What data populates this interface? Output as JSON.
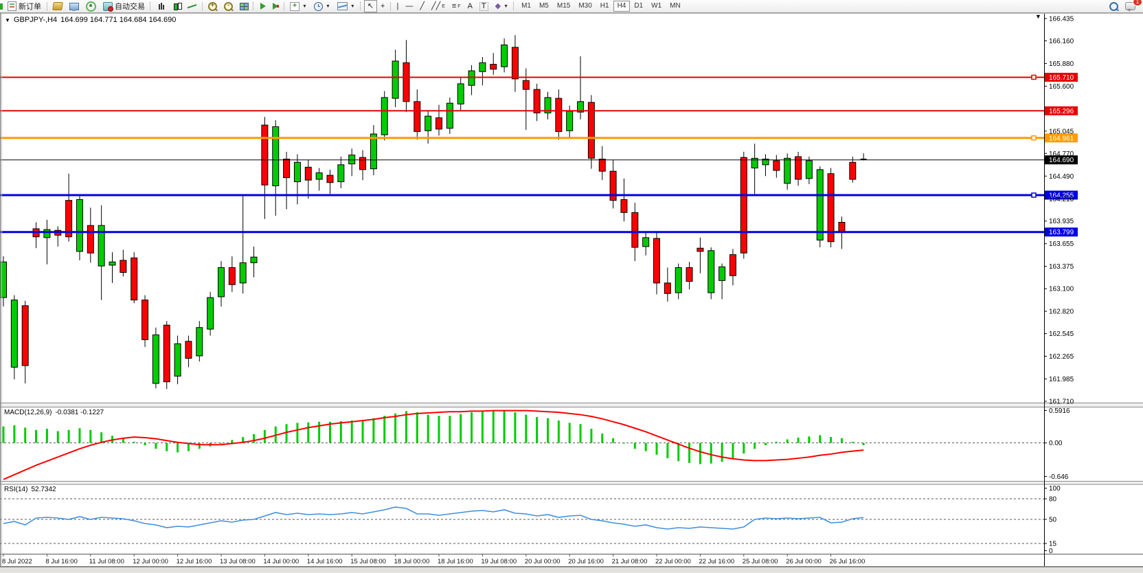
{
  "toolbar": {
    "new_order_label": "新订单",
    "autotrading_label": "自动交易",
    "text_tool_label": "A",
    "label_tool_label": "T",
    "channel_sub": "E",
    "fibo_sub": "F",
    "arrows_glyph": "◆",
    "cursor_glyph": "↖",
    "crosshair_glyph": "+",
    "vline_glyph": "|",
    "hline_glyph": "—",
    "trend_glyph": "╱",
    "channel_glyph": "╱╱",
    "fibo_glyph": "≡",
    "chat_badge": "1",
    "timeframes": [
      "M1",
      "M5",
      "M15",
      "M30",
      "H1",
      "H4",
      "D1",
      "W1",
      "MN"
    ],
    "active_timeframe": "H4"
  },
  "chart": {
    "marker": "▼",
    "symbol_period": "GBPJPY-,H4",
    "ohlc_text": "164.699 164.771 164.684 164.690",
    "shift_marker": "▼"
  },
  "colors": {
    "bull": "#00cc00",
    "bear": "#ff0000",
    "wick": "#000000",
    "macd_hist": "#00cc00",
    "macd_signal": "#ff0000",
    "rsi_line": "#3f8fde",
    "level_red": "#e60000",
    "level_orange": "#ff9c00",
    "level_blue": "#0000e0",
    "level_black": "#000000"
  },
  "price_axis_ticks": [
    "166.435",
    "166.160",
    "165.880",
    "165.600",
    "165.045",
    "164.770",
    "164.490",
    "164.210",
    "163.935",
    "163.655",
    "163.375",
    "163.100",
    "162.820",
    "162.545",
    "162.265",
    "161.985",
    "161.710"
  ],
  "levels": [
    {
      "price": "165.710",
      "value": 165.71,
      "color": "#e60000",
      "thickness": 2,
      "handle": true
    },
    {
      "price": "165.296",
      "value": 165.296,
      "color": "#e60000",
      "thickness": 2,
      "handle": false
    },
    {
      "price": "164.961",
      "value": 164.961,
      "color": "#ff9c00",
      "thickness": 3,
      "handle": true
    },
    {
      "price": "164.690",
      "value": 164.69,
      "color": "#000000",
      "thickness": 1,
      "handle": false
    },
    {
      "price": "164.255",
      "value": 164.255,
      "color": "#0000e0",
      "thickness": 3,
      "handle": true
    },
    {
      "price": "163.799",
      "value": 163.799,
      "color": "#0000e0",
      "thickness": 3,
      "handle": false
    }
  ],
  "chart_data": [
    {
      "type": "candlestick",
      "title": "GBPJPY-,H4",
      "ylim": [
        161.71,
        166.435
      ],
      "x_labels": [
        "8 Jul 2022",
        "8 Jul 16:00",
        "11 Jul 08:00",
        "12 Jul 00:00",
        "12 Jul 16:00",
        "13 Jul 08:00",
        "14 Jul 00:00",
        "14 Jul 16:00",
        "15 Jul 08:00",
        "18 Jul 00:00",
        "18 Jul 16:00",
        "19 Jul 08:00",
        "20 Jul 00:00",
        "20 Jul 16:00",
        "21 Jul 08:00",
        "22 Jul 00:00",
        "22 Jul 16:00",
        "25 Jul 08:00",
        "26 Jul 00:00",
        "26 Jul 16:00"
      ],
      "x_label_every": 4,
      "ohlc": [
        [
          162.99,
          163.5,
          162.88,
          163.43
        ],
        [
          162.13,
          163.02,
          161.98,
          162.96
        ],
        [
          162.89,
          162.95,
          161.93,
          162.15
        ],
        [
          163.84,
          163.92,
          163.6,
          163.74
        ],
        [
          163.73,
          163.95,
          163.4,
          163.83
        ],
        [
          163.82,
          163.87,
          163.62,
          163.76
        ],
        [
          164.19,
          164.52,
          163.68,
          163.74
        ],
        [
          163.56,
          164.26,
          163.45,
          164.2
        ],
        [
          163.88,
          164.1,
          163.42,
          163.54
        ],
        [
          163.38,
          164.13,
          162.96,
          163.88
        ],
        [
          163.39,
          163.55,
          163.17,
          163.43
        ],
        [
          163.45,
          163.58,
          163.25,
          163.3
        ],
        [
          163.48,
          163.55,
          162.92,
          162.96
        ],
        [
          162.96,
          163.02,
          162.38,
          162.47
        ],
        [
          161.93,
          162.62,
          161.87,
          162.53
        ],
        [
          162.65,
          162.7,
          161.86,
          161.95
        ],
        [
          162.02,
          162.52,
          161.92,
          162.42
        ],
        [
          162.45,
          162.52,
          162.13,
          162.24
        ],
        [
          162.27,
          162.7,
          162.2,
          162.62
        ],
        [
          162.6,
          163.06,
          162.52,
          162.99
        ],
        [
          163.0,
          163.44,
          162.88,
          163.36
        ],
        [
          163.36,
          163.5,
          163.06,
          163.15
        ],
        [
          163.17,
          164.25,
          163.04,
          163.42
        ],
        [
          163.42,
          163.62,
          163.24,
          163.49
        ],
        [
          165.12,
          165.22,
          163.96,
          164.38
        ],
        [
          164.37,
          165.18,
          164.0,
          165.1
        ],
        [
          164.7,
          164.79,
          164.08,
          164.47
        ],
        [
          164.42,
          164.76,
          164.14,
          164.66
        ],
        [
          164.6,
          164.69,
          164.21,
          164.44
        ],
        [
          164.45,
          164.59,
          164.31,
          164.53
        ],
        [
          164.5,
          164.57,
          164.27,
          164.41
        ],
        [
          164.42,
          164.73,
          164.34,
          164.63
        ],
        [
          164.64,
          164.83,
          164.49,
          164.75
        ],
        [
          164.72,
          164.81,
          164.44,
          164.57
        ],
        [
          164.58,
          165.12,
          164.5,
          165.01
        ],
        [
          165.0,
          165.54,
          164.93,
          165.46
        ],
        [
          165.45,
          166.05,
          165.34,
          165.91
        ],
        [
          165.89,
          166.17,
          165.28,
          165.41
        ],
        [
          165.41,
          165.56,
          164.94,
          165.04
        ],
        [
          165.05,
          165.3,
          164.89,
          165.23
        ],
        [
          165.21,
          165.37,
          164.99,
          165.07
        ],
        [
          165.08,
          165.46,
          165.01,
          165.39
        ],
        [
          165.38,
          165.71,
          165.29,
          165.63
        ],
        [
          165.61,
          165.86,
          165.49,
          165.79
        ],
        [
          165.78,
          165.96,
          165.61,
          165.89
        ],
        [
          165.87,
          166.01,
          165.74,
          165.81
        ],
        [
          165.84,
          166.19,
          165.77,
          166.11
        ],
        [
          166.08,
          166.23,
          165.53,
          165.69
        ],
        [
          165.67,
          165.82,
          165.06,
          165.56
        ],
        [
          165.56,
          165.63,
          165.17,
          165.27
        ],
        [
          165.27,
          165.53,
          165.19,
          165.46
        ],
        [
          165.45,
          165.56,
          164.94,
          165.04
        ],
        [
          165.05,
          165.36,
          164.97,
          165.29
        ],
        [
          165.28,
          165.97,
          165.19,
          165.41
        ],
        [
          165.4,
          165.49,
          164.58,
          164.71
        ],
        [
          164.7,
          164.86,
          164.44,
          164.55
        ],
        [
          164.55,
          164.69,
          164.09,
          164.19
        ],
        [
          164.2,
          164.46,
          163.93,
          164.04
        ],
        [
          164.04,
          164.16,
          163.44,
          163.61
        ],
        [
          163.62,
          163.81,
          163.51,
          163.73
        ],
        [
          163.72,
          163.79,
          163.03,
          163.17
        ],
        [
          163.17,
          163.36,
          162.94,
          163.04
        ],
        [
          163.05,
          163.41,
          162.97,
          163.36
        ],
        [
          163.36,
          163.43,
          163.09,
          163.19
        ],
        [
          163.6,
          163.73,
          163.29,
          163.56
        ],
        [
          163.05,
          163.61,
          162.97,
          163.57
        ],
        [
          163.2,
          163.41,
          162.97,
          163.37
        ],
        [
          163.52,
          163.59,
          163.14,
          163.26
        ],
        [
          164.72,
          164.79,
          163.47,
          163.54
        ],
        [
          164.59,
          164.89,
          164.26,
          164.71
        ],
        [
          164.63,
          164.76,
          164.49,
          164.7
        ],
        [
          164.68,
          164.75,
          164.47,
          164.56
        ],
        [
          164.4,
          164.77,
          164.32,
          164.71
        ],
        [
          164.73,
          164.79,
          164.37,
          164.45
        ],
        [
          164.46,
          164.73,
          164.39,
          164.68
        ],
        [
          163.7,
          164.61,
          163.61,
          164.57
        ],
        [
          164.52,
          164.59,
          163.61,
          163.68
        ],
        [
          163.92,
          163.99,
          163.59,
          163.81
        ],
        [
          164.66,
          164.73,
          164.41,
          164.45
        ],
        [
          164.699,
          164.771,
          164.684,
          164.69
        ]
      ]
    },
    {
      "type": "macd",
      "label": "MACD(12,26,9)",
      "values_text": "-0.0381 -0.1227",
      "axis_labels": [
        "0.5916",
        "0.00",
        "-0.646"
      ],
      "ylim": [
        -0.646,
        0.5916
      ],
      "histogram": [
        0.28,
        0.3,
        0.26,
        0.22,
        0.24,
        0.2,
        0.22,
        0.25,
        0.22,
        0.18,
        0.12,
        0.08,
        0.02,
        -0.04,
        -0.1,
        -0.14,
        -0.16,
        -0.14,
        -0.1,
        -0.06,
        0.0,
        0.05,
        0.1,
        0.15,
        0.22,
        0.28,
        0.32,
        0.34,
        0.35,
        0.36,
        0.36,
        0.37,
        0.38,
        0.39,
        0.42,
        0.46,
        0.5,
        0.54,
        0.52,
        0.48,
        0.46,
        0.46,
        0.49,
        0.52,
        0.55,
        0.54,
        0.56,
        0.52,
        0.48,
        0.44,
        0.42,
        0.38,
        0.34,
        0.32,
        0.24,
        0.16,
        0.08,
        0.0,
        -0.1,
        -0.14,
        -0.2,
        -0.26,
        -0.31,
        -0.34,
        -0.36,
        -0.35,
        -0.32,
        -0.28,
        -0.18,
        -0.1,
        -0.04,
        0.02,
        0.06,
        0.09,
        0.11,
        0.13,
        0.1,
        0.08,
        0.02,
        -0.0381
      ],
      "signal": [
        -0.62,
        -0.54,
        -0.46,
        -0.38,
        -0.31,
        -0.24,
        -0.17,
        -0.1,
        -0.04,
        0.01,
        0.05,
        0.08,
        0.1,
        0.09,
        0.07,
        0.04,
        0.01,
        -0.01,
        -0.03,
        -0.03,
        -0.03,
        -0.01,
        0.01,
        0.04,
        0.08,
        0.13,
        0.18,
        0.22,
        0.26,
        0.29,
        0.32,
        0.34,
        0.36,
        0.38,
        0.4,
        0.43,
        0.45,
        0.48,
        0.5,
        0.51,
        0.52,
        0.53,
        0.53,
        0.54,
        0.54,
        0.55,
        0.55,
        0.55,
        0.55,
        0.54,
        0.53,
        0.52,
        0.5,
        0.48,
        0.45,
        0.41,
        0.36,
        0.31,
        0.25,
        0.19,
        0.12,
        0.05,
        -0.02,
        -0.09,
        -0.15,
        -0.2,
        -0.24,
        -0.27,
        -0.29,
        -0.3,
        -0.3,
        -0.29,
        -0.28,
        -0.26,
        -0.24,
        -0.21,
        -0.19,
        -0.16,
        -0.14,
        -0.1227
      ]
    },
    {
      "type": "line",
      "label": "RSI(14)",
      "value_text": "52.7342",
      "axis_labels": [
        "100",
        "80",
        "50",
        "15",
        "0"
      ],
      "levels": [
        80,
        50,
        15
      ],
      "ylim": [
        0,
        100
      ],
      "values": [
        44,
        47,
        42,
        52,
        53,
        52,
        50,
        54,
        50,
        53,
        52,
        51,
        48,
        44,
        42,
        38,
        40,
        39,
        42,
        45,
        48,
        46,
        49,
        50,
        55,
        60,
        57,
        59,
        57,
        58,
        57,
        58,
        60,
        58,
        61,
        64,
        68,
        66,
        58,
        58,
        56,
        58,
        60,
        62,
        63,
        61,
        64,
        59,
        58,
        55,
        57,
        53,
        55,
        56,
        50,
        48,
        45,
        43,
        40,
        42,
        38,
        36,
        38,
        37,
        39,
        38,
        37,
        36,
        39,
        50,
        52,
        51,
        52,
        51,
        52,
        53,
        45,
        46,
        51,
        52.73
      ]
    }
  ]
}
